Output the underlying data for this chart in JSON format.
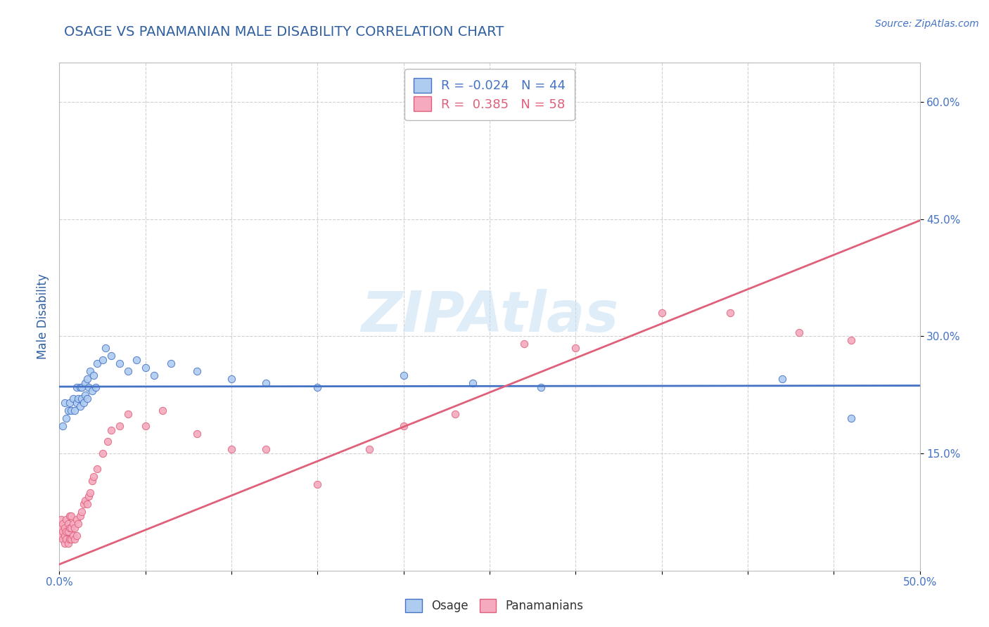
{
  "title": "OSAGE VS PANAMANIAN MALE DISABILITY CORRELATION CHART",
  "source_text": "Source: ZipAtlas.com",
  "ylabel": "Male Disability",
  "xlim": [
    0.0,
    0.5
  ],
  "ylim": [
    0.0,
    0.65
  ],
  "xticks": [
    0.0,
    0.05,
    0.1,
    0.15,
    0.2,
    0.25,
    0.3,
    0.35,
    0.4,
    0.45,
    0.5
  ],
  "xtick_labels": [
    "0.0%",
    "",
    "",
    "",
    "",
    "",
    "",
    "",
    "",
    "",
    "50.0%"
  ],
  "ytick_labels_right": [
    "15.0%",
    "30.0%",
    "45.0%",
    "60.0%"
  ],
  "ytick_positions_right": [
    0.15,
    0.3,
    0.45,
    0.6
  ],
  "osage_color": "#aecbf0",
  "panamanian_color": "#f5aabf",
  "osage_line_color": "#4472c4",
  "panamanian_line_color": "#e0607a",
  "R_osage": -0.024,
  "N_osage": 44,
  "R_panamanian": 0.385,
  "N_panamanian": 58,
  "watermark": "ZIPAtlas",
  "watermark_color": "#c5dff5",
  "background_color": "#ffffff",
  "grid_color": "#cccccc",
  "title_color": "#3060a0",
  "axis_label_color": "#3060a0",
  "tick_label_color": "#4472c4",
  "osage_trend": [
    0.221,
    0.218
  ],
  "panamanian_trend": [
    0.008,
    0.88
  ],
  "osage_x": [
    0.002,
    0.003,
    0.004,
    0.005,
    0.006,
    0.007,
    0.008,
    0.009,
    0.01,
    0.01,
    0.011,
    0.012,
    0.012,
    0.013,
    0.013,
    0.014,
    0.015,
    0.015,
    0.016,
    0.016,
    0.017,
    0.018,
    0.019,
    0.02,
    0.021,
    0.022,
    0.025,
    0.027,
    0.03,
    0.035,
    0.04,
    0.045,
    0.05,
    0.055,
    0.065,
    0.08,
    0.1,
    0.12,
    0.15,
    0.2,
    0.24,
    0.28,
    0.42,
    0.46
  ],
  "osage_y": [
    0.185,
    0.215,
    0.195,
    0.205,
    0.215,
    0.205,
    0.22,
    0.205,
    0.215,
    0.235,
    0.22,
    0.21,
    0.235,
    0.22,
    0.235,
    0.215,
    0.225,
    0.24,
    0.22,
    0.245,
    0.235,
    0.255,
    0.23,
    0.25,
    0.235,
    0.265,
    0.27,
    0.285,
    0.275,
    0.265,
    0.255,
    0.27,
    0.26,
    0.25,
    0.265,
    0.255,
    0.245,
    0.24,
    0.235,
    0.25,
    0.24,
    0.235,
    0.245,
    0.195
  ],
  "panamanian_x": [
    0.001,
    0.001,
    0.001,
    0.002,
    0.002,
    0.002,
    0.003,
    0.003,
    0.003,
    0.004,
    0.004,
    0.004,
    0.005,
    0.005,
    0.005,
    0.006,
    0.006,
    0.006,
    0.007,
    0.007,
    0.007,
    0.008,
    0.008,
    0.009,
    0.009,
    0.01,
    0.01,
    0.011,
    0.012,
    0.013,
    0.014,
    0.015,
    0.016,
    0.017,
    0.018,
    0.019,
    0.02,
    0.022,
    0.025,
    0.028,
    0.03,
    0.035,
    0.04,
    0.05,
    0.06,
    0.08,
    0.1,
    0.12,
    0.15,
    0.18,
    0.2,
    0.23,
    0.27,
    0.3,
    0.35,
    0.39,
    0.43,
    0.46
  ],
  "panamanian_y": [
    0.055,
    0.045,
    0.065,
    0.04,
    0.05,
    0.06,
    0.035,
    0.045,
    0.055,
    0.04,
    0.05,
    0.065,
    0.035,
    0.05,
    0.06,
    0.04,
    0.055,
    0.07,
    0.04,
    0.055,
    0.07,
    0.045,
    0.06,
    0.04,
    0.055,
    0.045,
    0.065,
    0.06,
    0.07,
    0.075,
    0.085,
    0.09,
    0.085,
    0.095,
    0.1,
    0.115,
    0.12,
    0.13,
    0.15,
    0.165,
    0.18,
    0.185,
    0.2,
    0.185,
    0.205,
    0.175,
    0.155,
    0.155,
    0.11,
    0.155,
    0.185,
    0.2,
    0.29,
    0.285,
    0.33,
    0.33,
    0.305,
    0.295
  ]
}
